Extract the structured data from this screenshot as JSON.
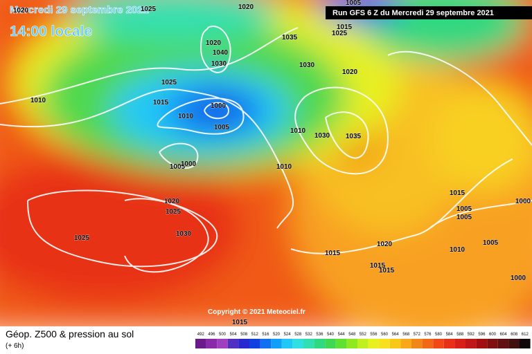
{
  "header": {
    "date": "Mercredi 29 septembre 2021",
    "time": "14:00 locale",
    "run": "Run GFS 6 Z du Mercredi 29 septembre 2021"
  },
  "copyright": "Copyright © 2021 Meteociel.fr",
  "isobar_labels": [
    "1005",
    "1025",
    "1020",
    "1020",
    "1040",
    "1030",
    "1035",
    "1030",
    "1025",
    "1015",
    "1020",
    "1025",
    "1020",
    "1015",
    "1010",
    "1010",
    "1000",
    "1005",
    "1010",
    "1030",
    "1035",
    "1005",
    "1000",
    "1010",
    "1020",
    "1025",
    "1030",
    "1025",
    "1015",
    "1020",
    "1015",
    "1015",
    "1010",
    "1015",
    "1005",
    "1005",
    "1000",
    "1005",
    "1000",
    "1015"
  ],
  "legend": {
    "title": "Géop. Z500 & pression au sol",
    "subtitle": "(+ 6h)",
    "scale": [
      "492",
      "496",
      "500",
      "504",
      "508",
      "512",
      "516",
      "520",
      "524",
      "528",
      "532",
      "536",
      "540",
      "544",
      "548",
      "552",
      "556",
      "560",
      "564",
      "568",
      "572",
      "576",
      "580",
      "584",
      "588",
      "592",
      "596",
      "600",
      "604",
      "608",
      "612"
    ],
    "colors": [
      "#6a1a8a",
      "#8a2aa8",
      "#a040c0",
      "#5030c0",
      "#2828d0",
      "#1040e0",
      "#1070f0",
      "#10a0f8",
      "#20c8f8",
      "#30e0e0",
      "#30e0b0",
      "#30d880",
      "#40d850",
      "#60e030",
      "#90e820",
      "#c0f020",
      "#e8f020",
      "#f8e020",
      "#f8c818",
      "#f8a818",
      "#f08818",
      "#f06818",
      "#f04818",
      "#e83018",
      "#d82018",
      "#c01818",
      "#a01010",
      "#801010",
      "#601010",
      "#401010",
      "#100808"
    ]
  }
}
